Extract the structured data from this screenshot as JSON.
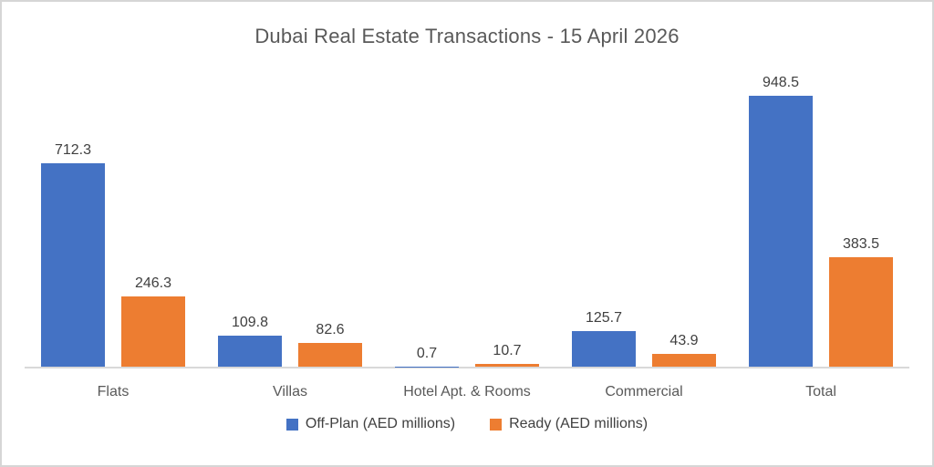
{
  "chart_data": {
    "type": "bar",
    "title": "Dubai Real Estate Transactions - 15 April 2026",
    "categories": [
      "Flats",
      "Villas",
      "Hotel Apt. & Rooms",
      "Commercial",
      "Total"
    ],
    "series": [
      {
        "name": "Off-Plan (AED millions)",
        "color": "#4472C4",
        "values": [
          712.3,
          109.8,
          0.7,
          125.7,
          948.5
        ]
      },
      {
        "name": "Ready (AED millions)",
        "color": "#ED7D31",
        "values": [
          246.3,
          82.6,
          10.7,
          43.9,
          383.5
        ]
      }
    ],
    "data_labels": true,
    "grid": false,
    "legend_position": "bottom",
    "xlabel": "",
    "ylabel": "",
    "axis_max": 948.5
  },
  "colors": {
    "title_text": "#595959",
    "data_label_text": "#404040",
    "category_text": "#595959",
    "axis_line": "#D9D9D9",
    "frame_border": "#D6D6D6",
    "background": "#FFFFFF",
    "series_offplan": "#4472C4",
    "series_ready": "#ED7D31"
  }
}
